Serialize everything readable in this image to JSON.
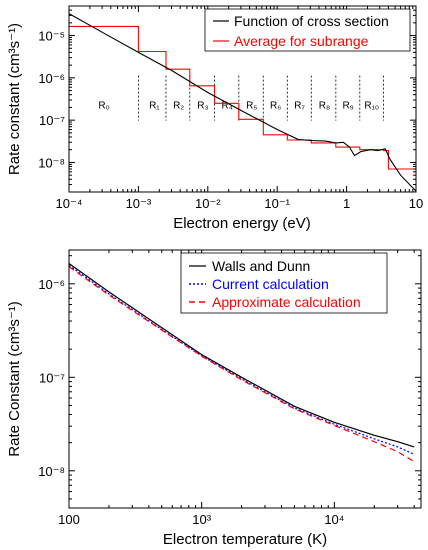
{
  "chart_data": [
    {
      "type": "line",
      "xlabel": "Electron energy (eV)",
      "ylabel": "Rate constant (cm³s⁻¹)",
      "xscale": "log",
      "yscale": "log",
      "xlim": [
        0.0001,
        10
      ],
      "ylim": [
        2e-09,
        5e-05
      ],
      "legend_position": "top-right",
      "x_tick_labels": [
        "10⁻⁴",
        "10⁻³",
        "10⁻²",
        "10⁻¹",
        "1",
        "10"
      ],
      "y_tick_labels": [
        "10⁻⁵",
        "10⁻⁶",
        "10⁻⁷",
        "10⁻⁸"
      ],
      "region_labels": [
        {
          "text": "R₀",
          "x": 0.00032
        },
        {
          "text": "R₁",
          "x": 0.0017
        },
        {
          "text": "R₂",
          "x": 0.0038
        },
        {
          "text": "R₃",
          "x": 0.0085
        },
        {
          "text": "R₄",
          "x": 0.019
        },
        {
          "text": "R₅",
          "x": 0.043
        },
        {
          "text": "R₆",
          "x": 0.095
        },
        {
          "text": "R₇",
          "x": 0.21
        },
        {
          "text": "R₈",
          "x": 0.48
        },
        {
          "text": "R₉",
          "x": 1.05
        },
        {
          "text": "R₁₀",
          "x": 2.3
        }
      ],
      "region_boundaries": [
        0.001,
        0.0025,
        0.0055,
        0.0125,
        0.028,
        0.063,
        0.14,
        0.31,
        0.7,
        1.55,
        3.4
      ],
      "series": [
        {
          "name": "Function of cross section",
          "color": "#000000",
          "x": [
            0.0001,
            0.0003,
            0.001,
            0.003,
            0.01,
            0.03,
            0.1,
            0.2,
            0.3,
            0.5,
            0.7,
            0.9,
            1.1,
            1.3,
            1.6,
            2.2,
            2.8,
            3.2,
            3.6,
            4.2,
            6,
            10
          ],
          "y": [
            3.3e-05,
            1.2e-05,
            4e-06,
            1.5e-06,
            4.5e-07,
            1.7e-07,
            6e-08,
            3.5e-08,
            3.3e-08,
            3.2e-08,
            2.9e-08,
            3e-08,
            2.3e-08,
            1.45e-08,
            1.8e-08,
            2e-08,
            1.9e-08,
            2e-08,
            2.1e-08,
            1.2e-08,
            5e-09,
            2.1e-09
          ]
        },
        {
          "name": "Average for subrange",
          "color": "#ff0000",
          "type": "step",
          "x": [
            0.0001,
            0.001,
            0.001,
            0.0025,
            0.0025,
            0.0055,
            0.0055,
            0.0125,
            0.0125,
            0.028,
            0.028,
            0.063,
            0.063,
            0.14,
            0.14,
            0.31,
            0.31,
            0.7,
            0.7,
            1.55,
            1.55,
            3.4,
            3.4,
            4.0,
            4.0,
            10
          ],
          "y": [
            1.65e-05,
            1.65e-05,
            4.2e-06,
            4.2e-06,
            1.6e-06,
            1.6e-06,
            6.5e-07,
            6.5e-07,
            2.5e-07,
            2.5e-07,
            1.05e-07,
            1.05e-07,
            4.5e-08,
            4.5e-08,
            3.4e-08,
            3.4e-08,
            2.9e-08,
            2.9e-08,
            2.3e-08,
            2.3e-08,
            2e-08,
            2e-08,
            1.9e-08,
            1.9e-08,
            7e-09,
            7e-09
          ]
        }
      ]
    },
    {
      "type": "line",
      "xlabel": "Electron temperature (K)",
      "ylabel": "Rate Constant (cm³s⁻¹)",
      "xscale": "log",
      "yscale": "log",
      "xlim": [
        100,
        45000
      ],
      "ylim": [
        4e-09,
        2.3e-06
      ],
      "legend_position": "top-right",
      "x_tick_labels": [
        "100",
        "10³",
        "10⁴"
      ],
      "y_tick_labels": [
        "10⁻⁶",
        "10⁻⁷",
        "10⁻⁸"
      ],
      "series": [
        {
          "name": "Walls and Dunn",
          "color": "#000000",
          "dash": "solid",
          "x": [
            100,
            200,
            500,
            1000,
            2000,
            5000,
            10000,
            20000,
            30000,
            40000
          ],
          "y": [
            1.65e-06,
            8.2e-07,
            3.4e-07,
            1.75e-07,
            1e-07,
            4.9e-08,
            3.3e-08,
            2.4e-08,
            2.05e-08,
            1.8e-08
          ]
        },
        {
          "name": "Current calculation",
          "color": "#0000ff",
          "dash": "dotted",
          "x": [
            100,
            200,
            500,
            1000,
            2000,
            5000,
            10000,
            20000,
            30000,
            40000
          ],
          "y": [
            1.58e-06,
            7.8e-07,
            3.25e-07,
            1.7e-07,
            9.6e-08,
            4.7e-08,
            3.15e-08,
            2.2e-08,
            1.8e-08,
            1.5e-08
          ]
        },
        {
          "name": "Approximate calculation",
          "color": "#ff0000",
          "dash": "dashed",
          "x": [
            100,
            200,
            500,
            1000,
            2000,
            5000,
            10000,
            20000,
            30000,
            40000
          ],
          "y": [
            1.52e-06,
            7.6e-07,
            3.2e-07,
            1.68e-07,
            9.4e-08,
            4.6e-08,
            3.05e-08,
            2.05e-08,
            1.6e-08,
            1.25e-08
          ]
        }
      ]
    }
  ]
}
